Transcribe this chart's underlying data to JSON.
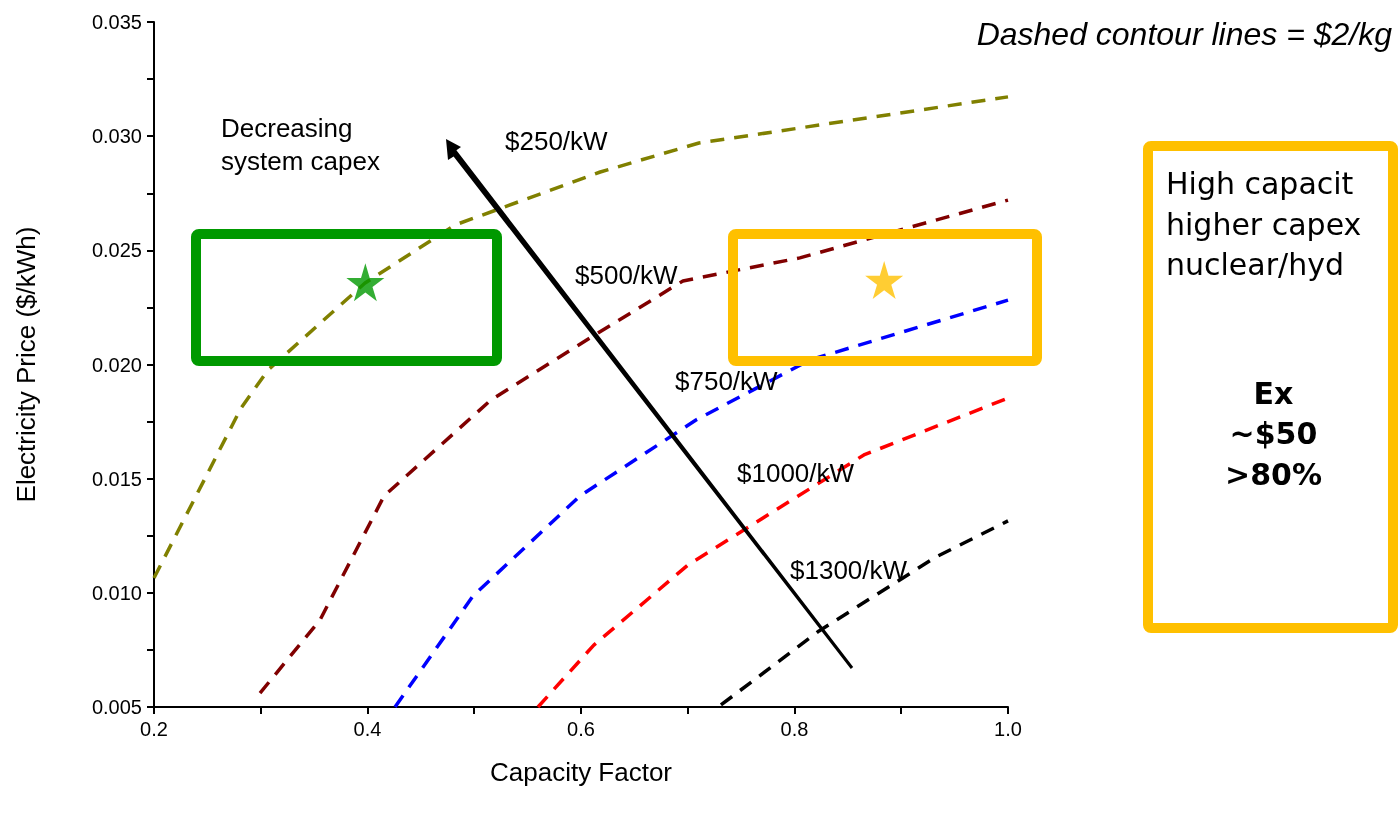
{
  "chart_data": {
    "type": "line",
    "xlabel": "Capacity Factor",
    "ylabel": "Electricity Price ($/kWh)",
    "xlim": [
      0.2,
      1.0
    ],
    "xticks": [
      {
        "value": 0.2,
        "label": "0.2"
      },
      {
        "value": 0.3,
        "label": null
      },
      {
        "value": 0.4,
        "label": "0.4"
      },
      {
        "value": 0.5,
        "label": null
      },
      {
        "value": 0.6,
        "label": "0.6"
      },
      {
        "value": 0.7,
        "label": null
      },
      {
        "value": 0.8,
        "label": "0.8"
      },
      {
        "value": 0.9,
        "label": null
      },
      {
        "value": 1.0,
        "label": "1.0"
      }
    ],
    "ylim": [
      0.005,
      0.035
    ],
    "yticks": [
      {
        "value": 0.005,
        "label": "0.005"
      },
      {
        "value": 0.0075,
        "label": null
      },
      {
        "value": 0.01,
        "label": "0.010"
      },
      {
        "value": 0.0125,
        "label": null
      },
      {
        "value": 0.015,
        "label": "0.015"
      },
      {
        "value": 0.0175,
        "label": null
      },
      {
        "value": 0.02,
        "label": "0.020"
      },
      {
        "value": 0.0225,
        "label": null
      },
      {
        "value": 0.025,
        "label": "0.025"
      },
      {
        "value": 0.0275,
        "label": null
      },
      {
        "value": 0.03,
        "label": "0.030"
      },
      {
        "value": 0.0325,
        "label": null
      },
      {
        "value": 0.035,
        "label": "0.035"
      }
    ],
    "grid": false,
    "marker": "none",
    "line_style": "dashed",
    "series": [
      {
        "name": "$250/kW",
        "color": "#808000",
        "x": [
          0.2,
          0.2815,
          0.3068,
          0.3977,
          0.482,
          0.618,
          0.7105,
          1.0
        ],
        "values": [
          0.01065,
          0.01809,
          0.01976,
          0.02357,
          0.02611,
          0.02843,
          0.0297,
          0.03172
        ]
      },
      {
        "name": "$500/kW",
        "color": "#800000",
        "x": [
          0.2993,
          0.3555,
          0.4155,
          0.5157,
          0.6084,
          0.6955,
          0.805,
          1.0
        ],
        "values": [
          0.00561,
          0.00881,
          0.01424,
          0.01845,
          0.02116,
          0.02366,
          0.02467,
          0.0272
        ]
      },
      {
        "name": "$750/kW",
        "color": "#0000ff",
        "x": [
          0.4258,
          0.4988,
          0.599,
          0.7077,
          0.8145,
          1.0
        ],
        "values": [
          0.005,
          0.00986,
          0.01424,
          0.01757,
          0.0202,
          0.02282
        ]
      },
      {
        "name": "$1000/kW",
        "color": "#ff0000",
        "x": [
          0.5597,
          0.612,
          0.7002,
          0.865,
          1.0
        ],
        "values": [
          0.005,
          0.00771,
          0.01122,
          0.01604,
          0.01853
        ]
      },
      {
        "name": "$1300/kW",
        "color": "#000000",
        "x": [
          0.7311,
          0.823,
          0.9325,
          1.0
        ],
        "values": [
          0.00509,
          0.00833,
          0.01157,
          0.01315
        ]
      },
      {
        "type": "scatter",
        "marker": "star",
        "color": "#009900",
        "x": [
          0.398
        ],
        "values": [
          0.0236
        ]
      },
      {
        "type": "scatter",
        "marker": "star",
        "color": "#ffc000",
        "x": [
          0.884
        ],
        "values": [
          0.0237
        ]
      }
    ],
    "annotations": [
      "Dashed contour lines = $2/kg",
      "Decreasing\nsystem capex",
      "High capacit\nhigher capex\nnuclear/hyd\n\nEx\n~$50\n>80%"
    ]
  }
}
